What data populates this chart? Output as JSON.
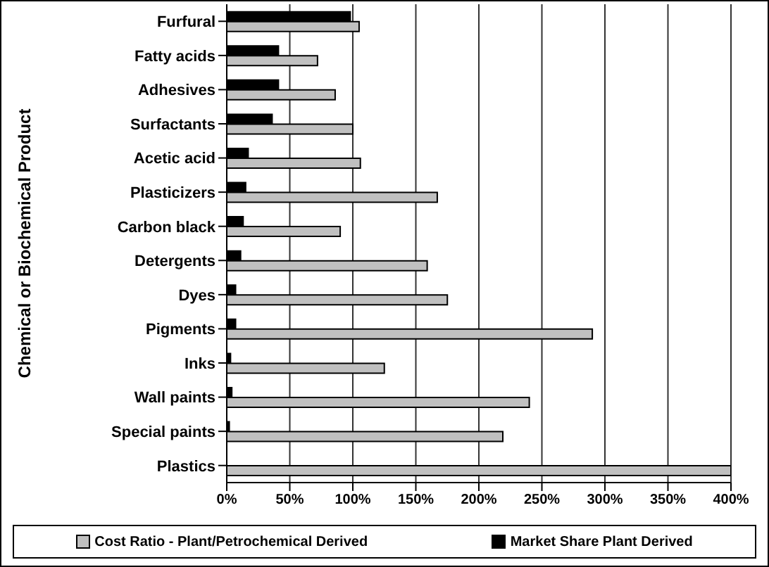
{
  "chart_data": {
    "type": "bar",
    "orientation": "horizontal",
    "ylabel": "Chemical or Biochemical Product",
    "categories": [
      "Furfural",
      "Fatty acids",
      "Adhesives",
      "Surfactants",
      "Acetic acid",
      "Plasticizers",
      "Carbon black",
      "Detergents",
      "Dyes",
      "Pigments",
      "Inks",
      "Wall paints",
      "Special paints",
      "Plastics"
    ],
    "series": [
      {
        "name": "Cost Ratio - Plant/Petrochemical Derived",
        "color": "#c0c0c0",
        "values": [
          105,
          72,
          86,
          100,
          106,
          167,
          90,
          159,
          175,
          290,
          125,
          240,
          219,
          400
        ]
      },
      {
        "name": "Market Share Plant Derived",
        "color": "#000000",
        "values": [
          98,
          41,
          41,
          36,
          17,
          15,
          13,
          11,
          7,
          7,
          3,
          4,
          2,
          0
        ]
      }
    ],
    "xlim": [
      0,
      400
    ],
    "xticks": [
      {
        "value": 0,
        "label": "0%"
      },
      {
        "value": 50,
        "label": "50%"
      },
      {
        "value": 100,
        "label": "100%"
      },
      {
        "value": 150,
        "label": "150%"
      },
      {
        "value": 200,
        "label": "200%"
      },
      {
        "value": 250,
        "label": "250%"
      },
      {
        "value": 300,
        "label": "300%"
      },
      {
        "value": 350,
        "label": "350%"
      },
      {
        "value": 400,
        "label": "400%"
      }
    ],
    "grid": "x",
    "legend": "bottom"
  }
}
